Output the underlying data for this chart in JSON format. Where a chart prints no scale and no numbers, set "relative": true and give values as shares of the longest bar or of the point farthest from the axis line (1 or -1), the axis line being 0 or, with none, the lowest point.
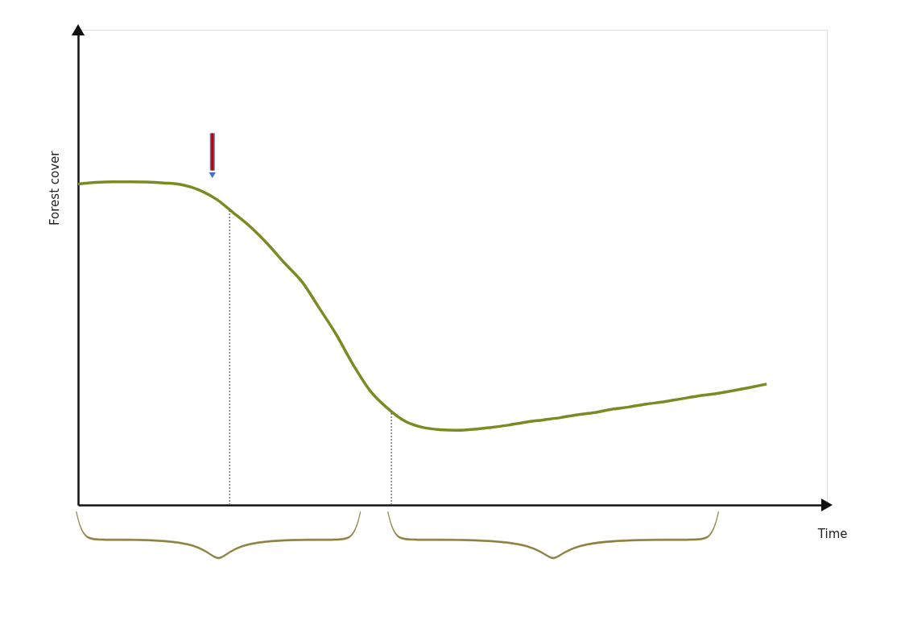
{
  "chart_data": {
    "type": "line",
    "relative": true,
    "xlabel": "Time",
    "ylabel": "Forest cover",
    "categories": [
      null,
      null,
      null,
      null,
      null,
      null,
      null,
      null,
      null,
      null,
      null,
      null,
      null,
      null,
      null,
      null,
      null,
      null,
      null,
      null,
      null,
      null,
      null,
      null,
      null,
      null,
      null,
      null,
      null,
      null,
      null,
      null,
      null,
      null,
      null,
      null,
      null,
      null,
      null,
      null,
      null
    ],
    "series": [
      {
        "color": "#7d8a24",
        "values": [
          0.993,
          0.998,
          1.0,
          1.0,
          0.999,
          0.996,
          0.991,
          0.975,
          0.947,
          0.905,
          0.861,
          0.808,
          0.748,
          0.691,
          0.61,
          0.527,
          0.432,
          0.351,
          0.298,
          0.259,
          0.24,
          0.233,
          0.231,
          0.234,
          0.24,
          0.247,
          0.256,
          0.263,
          0.27,
          0.279,
          0.286,
          0.296,
          0.303,
          0.312,
          0.319,
          0.328,
          0.337,
          0.344,
          0.353,
          0.363,
          0.374
        ]
      }
    ],
    "marker": "none",
    "line_style": "solid"
  }
}
